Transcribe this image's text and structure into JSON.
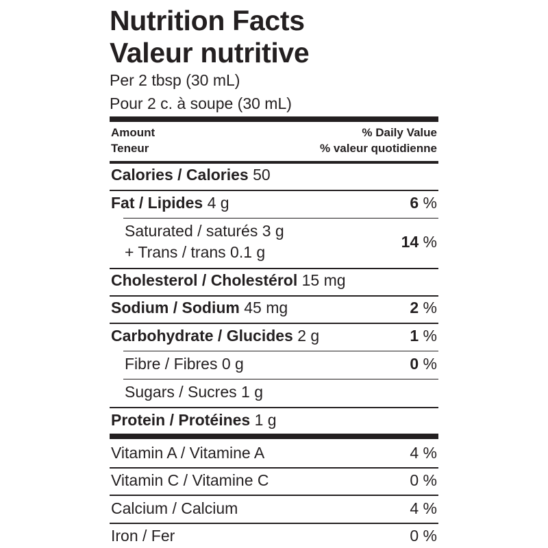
{
  "title_en": "Nutrition Facts",
  "title_fr": "Valeur nutritive",
  "serving_en": "Per 2 tbsp (30 mL)",
  "serving_fr": "Pour 2 c. à soupe (30 mL)",
  "header": {
    "amount_en": "Amount",
    "amount_fr": "Teneur",
    "dv_en": "% Daily Value",
    "dv_fr": "% valeur quotidienne"
  },
  "calories": {
    "label": "Calories / Calories",
    "amount": "50"
  },
  "fat": {
    "label": "Fat / Lipides",
    "amount": "4 g",
    "dv": "6",
    "pct": "%"
  },
  "saturated": {
    "line1": "Saturated / saturés 3 g",
    "line2": "+ Trans / trans 0.1 g",
    "dv": "14",
    "pct": "%"
  },
  "cholesterol": {
    "label": "Cholesterol / Cholestérol",
    "amount": "15 mg"
  },
  "sodium": {
    "label": "Sodium / Sodium",
    "amount": "45 mg",
    "dv": "2",
    "pct": "%"
  },
  "carbohydrate": {
    "label": "Carbohydrate / Glucides",
    "amount": "2 g",
    "dv": "1",
    "pct": "%"
  },
  "fibre": {
    "label": "Fibre / Fibres 0 g",
    "dv": "0",
    "pct": "%"
  },
  "sugars": {
    "label": "Sugars / Sucres 1 g"
  },
  "protein": {
    "label": "Protein / Protéines",
    "amount": "1 g"
  },
  "vitamins": [
    {
      "label": "Vitamin A / Vitamine A",
      "dv": "4 %"
    },
    {
      "label": "Vitamin C / Vitamine C",
      "dv": "0 %"
    },
    {
      "label": "Calcium / Calcium",
      "dv": "4 %"
    },
    {
      "label": "Iron / Fer",
      "dv": "0 %"
    }
  ]
}
